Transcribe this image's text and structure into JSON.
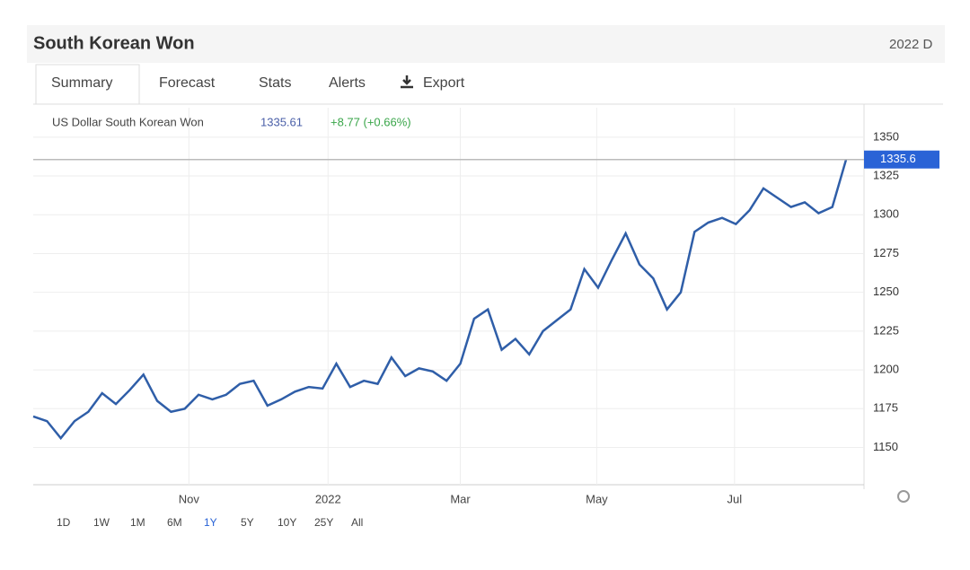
{
  "header": {
    "title": "South Korean Won",
    "right_text": "2022 D"
  },
  "tabs": [
    "Summary",
    "Forecast",
    "Stats",
    "Alerts",
    "Export"
  ],
  "chart_data": {
    "type": "line",
    "legend_value": 1335.61,
    "legend_change": "+8.77 (+0.66%)",
    "last_label": "1335.6",
    "series": [
      {
        "name": "US Dollar South Korean Won",
        "color": "#2f5ea8",
        "values": [
          1170,
          1167,
          1156,
          1167,
          1173,
          1185,
          1178,
          1187,
          1197,
          1180,
          1173,
          1175,
          1184,
          1181,
          1184,
          1191,
          1193,
          1177,
          1181,
          1186,
          1189,
          1188,
          1204,
          1189,
          1193,
          1191,
          1208,
          1196,
          1201,
          1199,
          1193,
          1204,
          1233,
          1239,
          1213,
          1220,
          1210,
          1225,
          1232,
          1239,
          1265,
          1253,
          1271,
          1288,
          1268,
          1259,
          1239,
          1250,
          1289,
          1295,
          1298,
          1294,
          1303,
          1317,
          1311,
          1305,
          1308,
          1301,
          1305,
          1335.61
        ]
      }
    ],
    "xlim": [
      0,
      60.3
    ],
    "xticks": [
      {
        "value": 11.3,
        "label": "Nov"
      },
      {
        "value": 21.4,
        "label": "2022"
      },
      {
        "value": 31,
        "label": "Mar"
      },
      {
        "value": 40.9,
        "label": "May"
      },
      {
        "value": 50.9,
        "label": "Jul"
      }
    ],
    "ylim": [
      1126,
      1369
    ],
    "yticks": [
      1150,
      1175,
      1200,
      1225,
      1250,
      1275,
      1300,
      1325,
      1350
    ],
    "grid": true
  },
  "ranges": [
    "1D",
    "1W",
    "1M",
    "6M",
    "1Y",
    "5Y",
    "10Y",
    "25Y",
    "All"
  ],
  "active_range": "1Y"
}
